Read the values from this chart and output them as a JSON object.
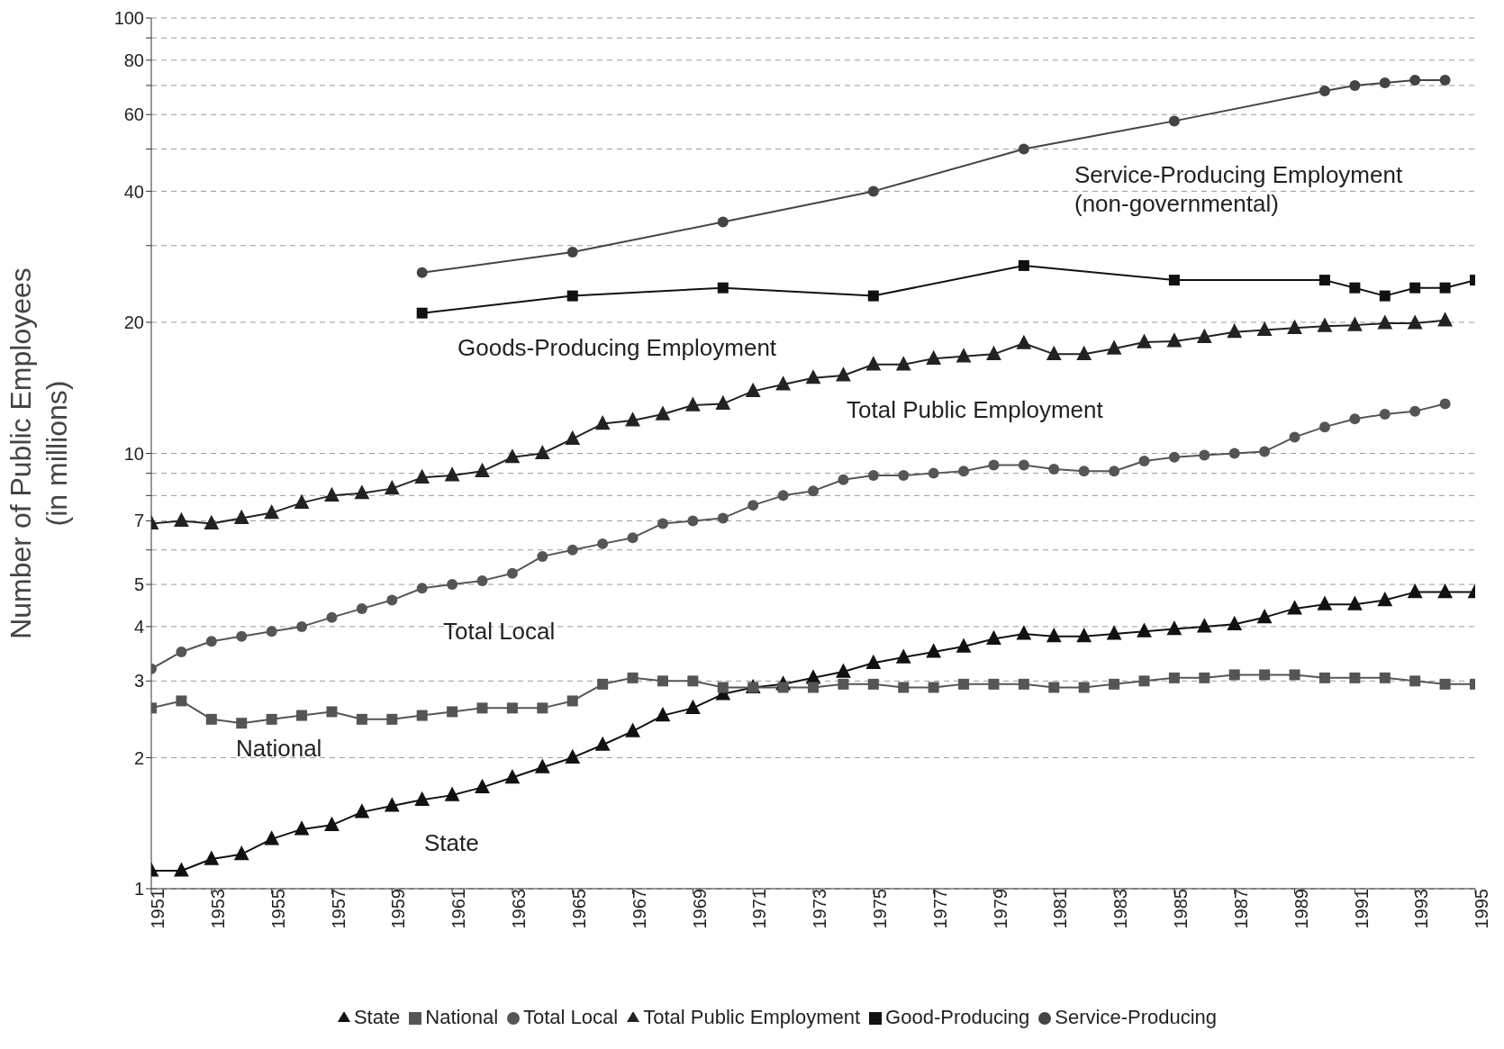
{
  "chart_data": {
    "type": "line",
    "ylabel": "Number of Public Employees\n(in millions)",
    "log": "y",
    "grid": "y",
    "legend": "bottom",
    "x": [
      1951,
      1952,
      1953,
      1954,
      1955,
      1956,
      1957,
      1958,
      1959,
      1960,
      1961,
      1962,
      1963,
      1964,
      1965,
      1966,
      1967,
      1968,
      1969,
      1970,
      1971,
      1972,
      1973,
      1974,
      1975,
      1976,
      1977,
      1978,
      1979,
      1980,
      1981,
      1982,
      1983,
      1984,
      1985,
      1986,
      1987,
      1988,
      1989,
      1990,
      1991,
      1992,
      1993,
      1994,
      1995
    ],
    "xlim": [
      1951,
      1995
    ],
    "xticks": [
      1951,
      1953,
      1955,
      1957,
      1959,
      1961,
      1963,
      1965,
      1967,
      1969,
      1971,
      1973,
      1975,
      1977,
      1979,
      1981,
      1983,
      1985,
      1987,
      1989,
      1991,
      1993,
      1995
    ],
    "ylim": [
      1,
      100
    ],
    "yticks": [
      1,
      2,
      3,
      4,
      5,
      {
        "value": 6,
        "label": null
      },
      7,
      {
        "value": 8,
        "label": null
      },
      {
        "value": 9,
        "label": null
      },
      10,
      20,
      {
        "value": 30,
        "label": null
      },
      40,
      {
        "value": 50,
        "label": null
      },
      60,
      {
        "value": 70,
        "label": null
      },
      80,
      {
        "value": 90,
        "label": null
      },
      100
    ],
    "series": [
      {
        "name": "State",
        "color": "#111111",
        "marker": "triangle",
        "values": [
          1.1,
          1.1,
          1.17,
          1.2,
          1.3,
          1.37,
          1.4,
          1.5,
          1.55,
          1.6,
          1.64,
          1.71,
          1.8,
          1.9,
          2.0,
          2.14,
          2.3,
          2.5,
          2.6,
          2.8,
          2.9,
          2.95,
          3.05,
          3.15,
          3.3,
          3.4,
          3.5,
          3.6,
          3.75,
          3.85,
          3.8,
          3.8,
          3.85,
          3.9,
          3.95,
          4.0,
          4.05,
          4.2,
          4.4,
          4.5,
          4.5,
          4.6,
          4.8,
          4.8,
          4.8
        ]
      },
      {
        "name": "National",
        "color": "#555555",
        "marker": "square",
        "values": [
          2.6,
          2.7,
          2.45,
          2.4,
          2.45,
          2.5,
          2.55,
          2.45,
          2.45,
          2.5,
          2.55,
          2.6,
          2.6,
          2.6,
          2.7,
          2.95,
          3.05,
          3.0,
          3.0,
          2.9,
          2.9,
          2.9,
          2.9,
          2.95,
          2.95,
          2.9,
          2.9,
          2.95,
          2.95,
          2.95,
          2.9,
          2.9,
          2.95,
          3.0,
          3.05,
          3.05,
          3.1,
          3.1,
          3.1,
          3.05,
          3.05,
          3.05,
          3.0,
          2.95,
          2.95
        ]
      },
      {
        "name": "Total Local",
        "color": "#555555",
        "marker": "circle",
        "values": [
          3.2,
          3.5,
          3.7,
          3.8,
          3.9,
          4.0,
          4.2,
          4.4,
          4.6,
          4.9,
          5.0,
          5.1,
          5.3,
          5.8,
          6.0,
          6.2,
          6.4,
          6.9,
          7.0,
          7.1,
          7.6,
          8.0,
          8.2,
          8.7,
          8.9,
          8.9,
          9.0,
          9.1,
          9.4,
          9.4,
          9.2,
          9.1,
          9.1,
          9.6,
          9.8,
          9.9,
          10.0,
          10.1,
          10.9,
          11.5,
          12.0,
          12.3,
          12.5,
          13.0,
          null
        ]
      },
      {
        "name": "Total Public Employment",
        "color": "#222222",
        "marker": "triangle",
        "values": [
          6.9,
          7.0,
          6.9,
          7.1,
          7.3,
          7.7,
          8.0,
          8.1,
          8.3,
          8.8,
          8.9,
          9.1,
          9.8,
          10.0,
          10.8,
          11.7,
          11.9,
          12.3,
          12.9,
          13.0,
          13.9,
          14.4,
          14.9,
          15.1,
          16.0,
          16.0,
          16.5,
          16.7,
          16.9,
          17.9,
          16.9,
          16.9,
          17.4,
          18.0,
          18.1,
          18.5,
          19.0,
          19.2,
          19.4,
          19.6,
          19.7,
          19.9,
          19.9,
          20.2,
          null
        ]
      },
      {
        "name": "Good-Producing",
        "color": "#111111",
        "marker": "square",
        "x": [
          1960,
          1965,
          1970,
          1975,
          1980,
          1985,
          1990,
          1991,
          1992,
          1993,
          1994,
          1995
        ],
        "values": [
          21,
          23,
          24,
          23,
          27,
          25,
          25,
          24,
          23,
          24,
          24,
          25
        ]
      },
      {
        "name": "Service-Producing",
        "color": "#444444",
        "marker": "circle",
        "x": [
          1960,
          1965,
          1970,
          1975,
          1980,
          1985,
          1990,
          1991,
          1992,
          1993,
          1994
        ],
        "values": [
          26,
          29,
          34,
          40,
          50,
          58,
          68,
          70,
          71,
          72,
          72
        ]
      }
    ],
    "annotations": [
      "Service-Producing Employment\n(non-governmental)",
      "Goods-Producing Employment",
      "Total Public Employment",
      "Total Local",
      "National",
      "State"
    ]
  }
}
